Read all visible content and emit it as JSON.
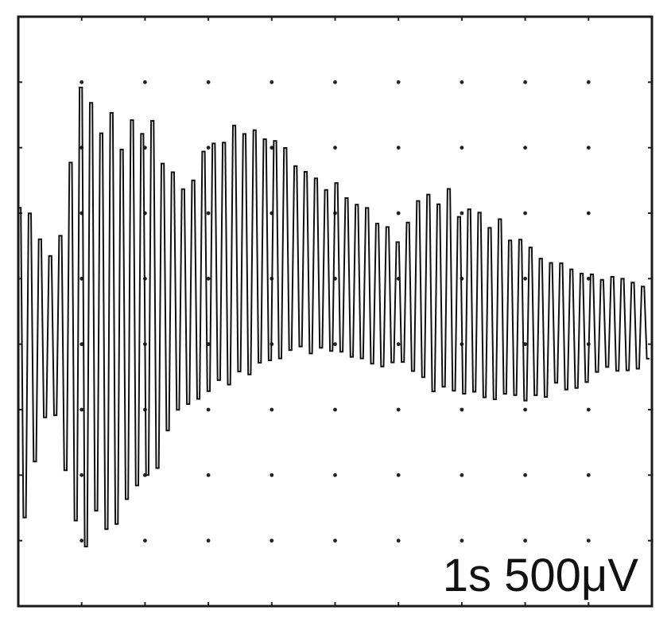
{
  "chart_data": {
    "type": "line",
    "title": "",
    "xlabel": "",
    "ylabel": "",
    "grid": true,
    "grid_divisions": {
      "x": 10,
      "y": 9
    },
    "xlim": [
      0,
      10
    ],
    "ylim": [
      -4.5,
      4.5
    ],
    "annotation": "1s 500μV",
    "series": [
      {
        "kind": "oscillating",
        "envelope": {
          "t": [
            0,
            0.1,
            0.3,
            0.6,
            1.0,
            1.2,
            1.6,
            2.0,
            2.4,
            2.8,
            3.2,
            3.6,
            4.0,
            4.4,
            4.8,
            5.2,
            5.6,
            6.0,
            6.4,
            6.8,
            7.2,
            7.6,
            8.0,
            8.4,
            8.8,
            9.2,
            9.6,
            10.0
          ],
          "upper": [
            1.7,
            1.8,
            1.2,
            0.9,
            3.8,
            3.3,
            3.0,
            3.2,
            2.2,
            2.3,
            2.9,
            3.0,
            2.8,
            2.5,
            2.2,
            2.0,
            1.5,
            1.3,
            2.0,
            1.9,
            1.6,
            1.4,
            1.1,
            0.9,
            0.7,
            0.6,
            0.5,
            0.4
          ],
          "lower": [
            -4.3,
            -3.5,
            -1.8,
            -1.6,
            -4.5,
            -3.6,
            -3.3,
            -2.9,
            -1.9,
            -1.5,
            -1.2,
            -1.0,
            -0.9,
            -0.6,
            -0.7,
            -0.8,
            -0.9,
            -0.8,
            -1.2,
            -1.3,
            -1.4,
            -1.4,
            -1.4,
            -1.3,
            -1.2,
            -1.0,
            -0.9,
            -0.9
          ]
        },
        "cycles_per_division": 6.2
      }
    ]
  }
}
